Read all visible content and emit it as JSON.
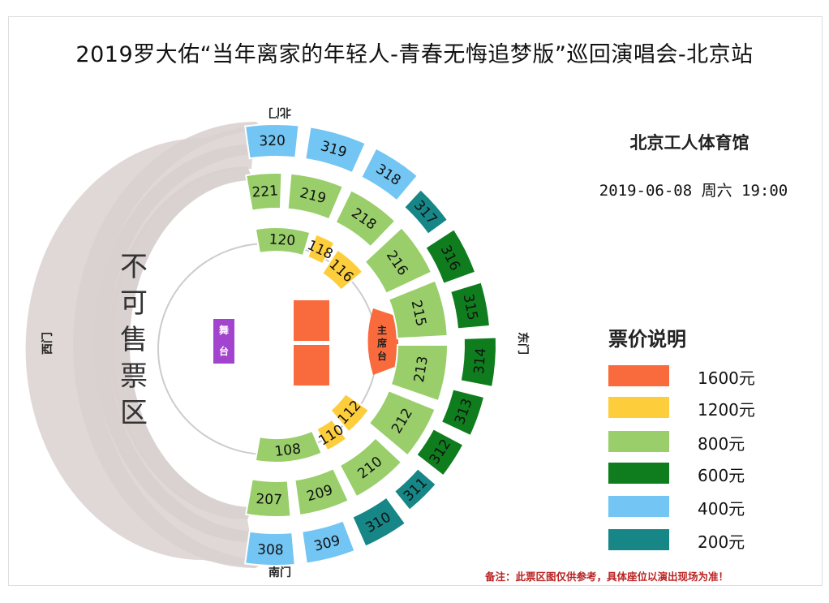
{
  "title": "2019罗大佑“当年离家的年轻人-青春无悔追梦版”巡回演唱会-北京站",
  "venue": "北京工人体育馆",
  "datetime": "2019-06-08  周六  19:00",
  "legend": {
    "title": "票价说明",
    "items": [
      {
        "label": "1600元",
        "color": "#f96a3c"
      },
      {
        "label": "1200元",
        "color": "#fdcd3b"
      },
      {
        "label": "800元",
        "color": "#99ce6b"
      },
      {
        "label": "600元",
        "color": "#0f7d1e"
      },
      {
        "label": "400元",
        "color": "#73c5f3"
      },
      {
        "label": "200元",
        "color": "#168686"
      }
    ]
  },
  "gates": {
    "north": "北门",
    "south": "南门",
    "east": "东门",
    "west": "西门"
  },
  "unsold_label": "不可售票区",
  "stage_label": "舞台",
  "vip_label": "主席台",
  "note": "备注：此票区图仅供参考，具体座位以演出现场为准！",
  "sections": [
    {
      "id": "320",
      "tier": "400"
    },
    {
      "id": "319",
      "tier": "400"
    },
    {
      "id": "318",
      "tier": "400"
    },
    {
      "id": "317",
      "tier": "200"
    },
    {
      "id": "316",
      "tier": "600"
    },
    {
      "id": "315",
      "tier": "600"
    },
    {
      "id": "314",
      "tier": "600"
    },
    {
      "id": "313",
      "tier": "600"
    },
    {
      "id": "312",
      "tier": "600"
    },
    {
      "id": "311",
      "tier": "200"
    },
    {
      "id": "310",
      "tier": "200"
    },
    {
      "id": "309",
      "tier": "400"
    },
    {
      "id": "308",
      "tier": "400"
    },
    {
      "id": "221",
      "tier": "800"
    },
    {
      "id": "219",
      "tier": "800"
    },
    {
      "id": "218",
      "tier": "800"
    },
    {
      "id": "216",
      "tier": "800"
    },
    {
      "id": "215",
      "tier": "800"
    },
    {
      "id": "213",
      "tier": "800"
    },
    {
      "id": "212",
      "tier": "800"
    },
    {
      "id": "210",
      "tier": "800"
    },
    {
      "id": "209",
      "tier": "800"
    },
    {
      "id": "207",
      "tier": "800"
    },
    {
      "id": "120",
      "tier": "800"
    },
    {
      "id": "118",
      "tier": "1200"
    },
    {
      "id": "116",
      "tier": "1200"
    },
    {
      "id": "112",
      "tier": "1200"
    },
    {
      "id": "110",
      "tier": "1200"
    },
    {
      "id": "108",
      "tier": "800"
    }
  ]
}
